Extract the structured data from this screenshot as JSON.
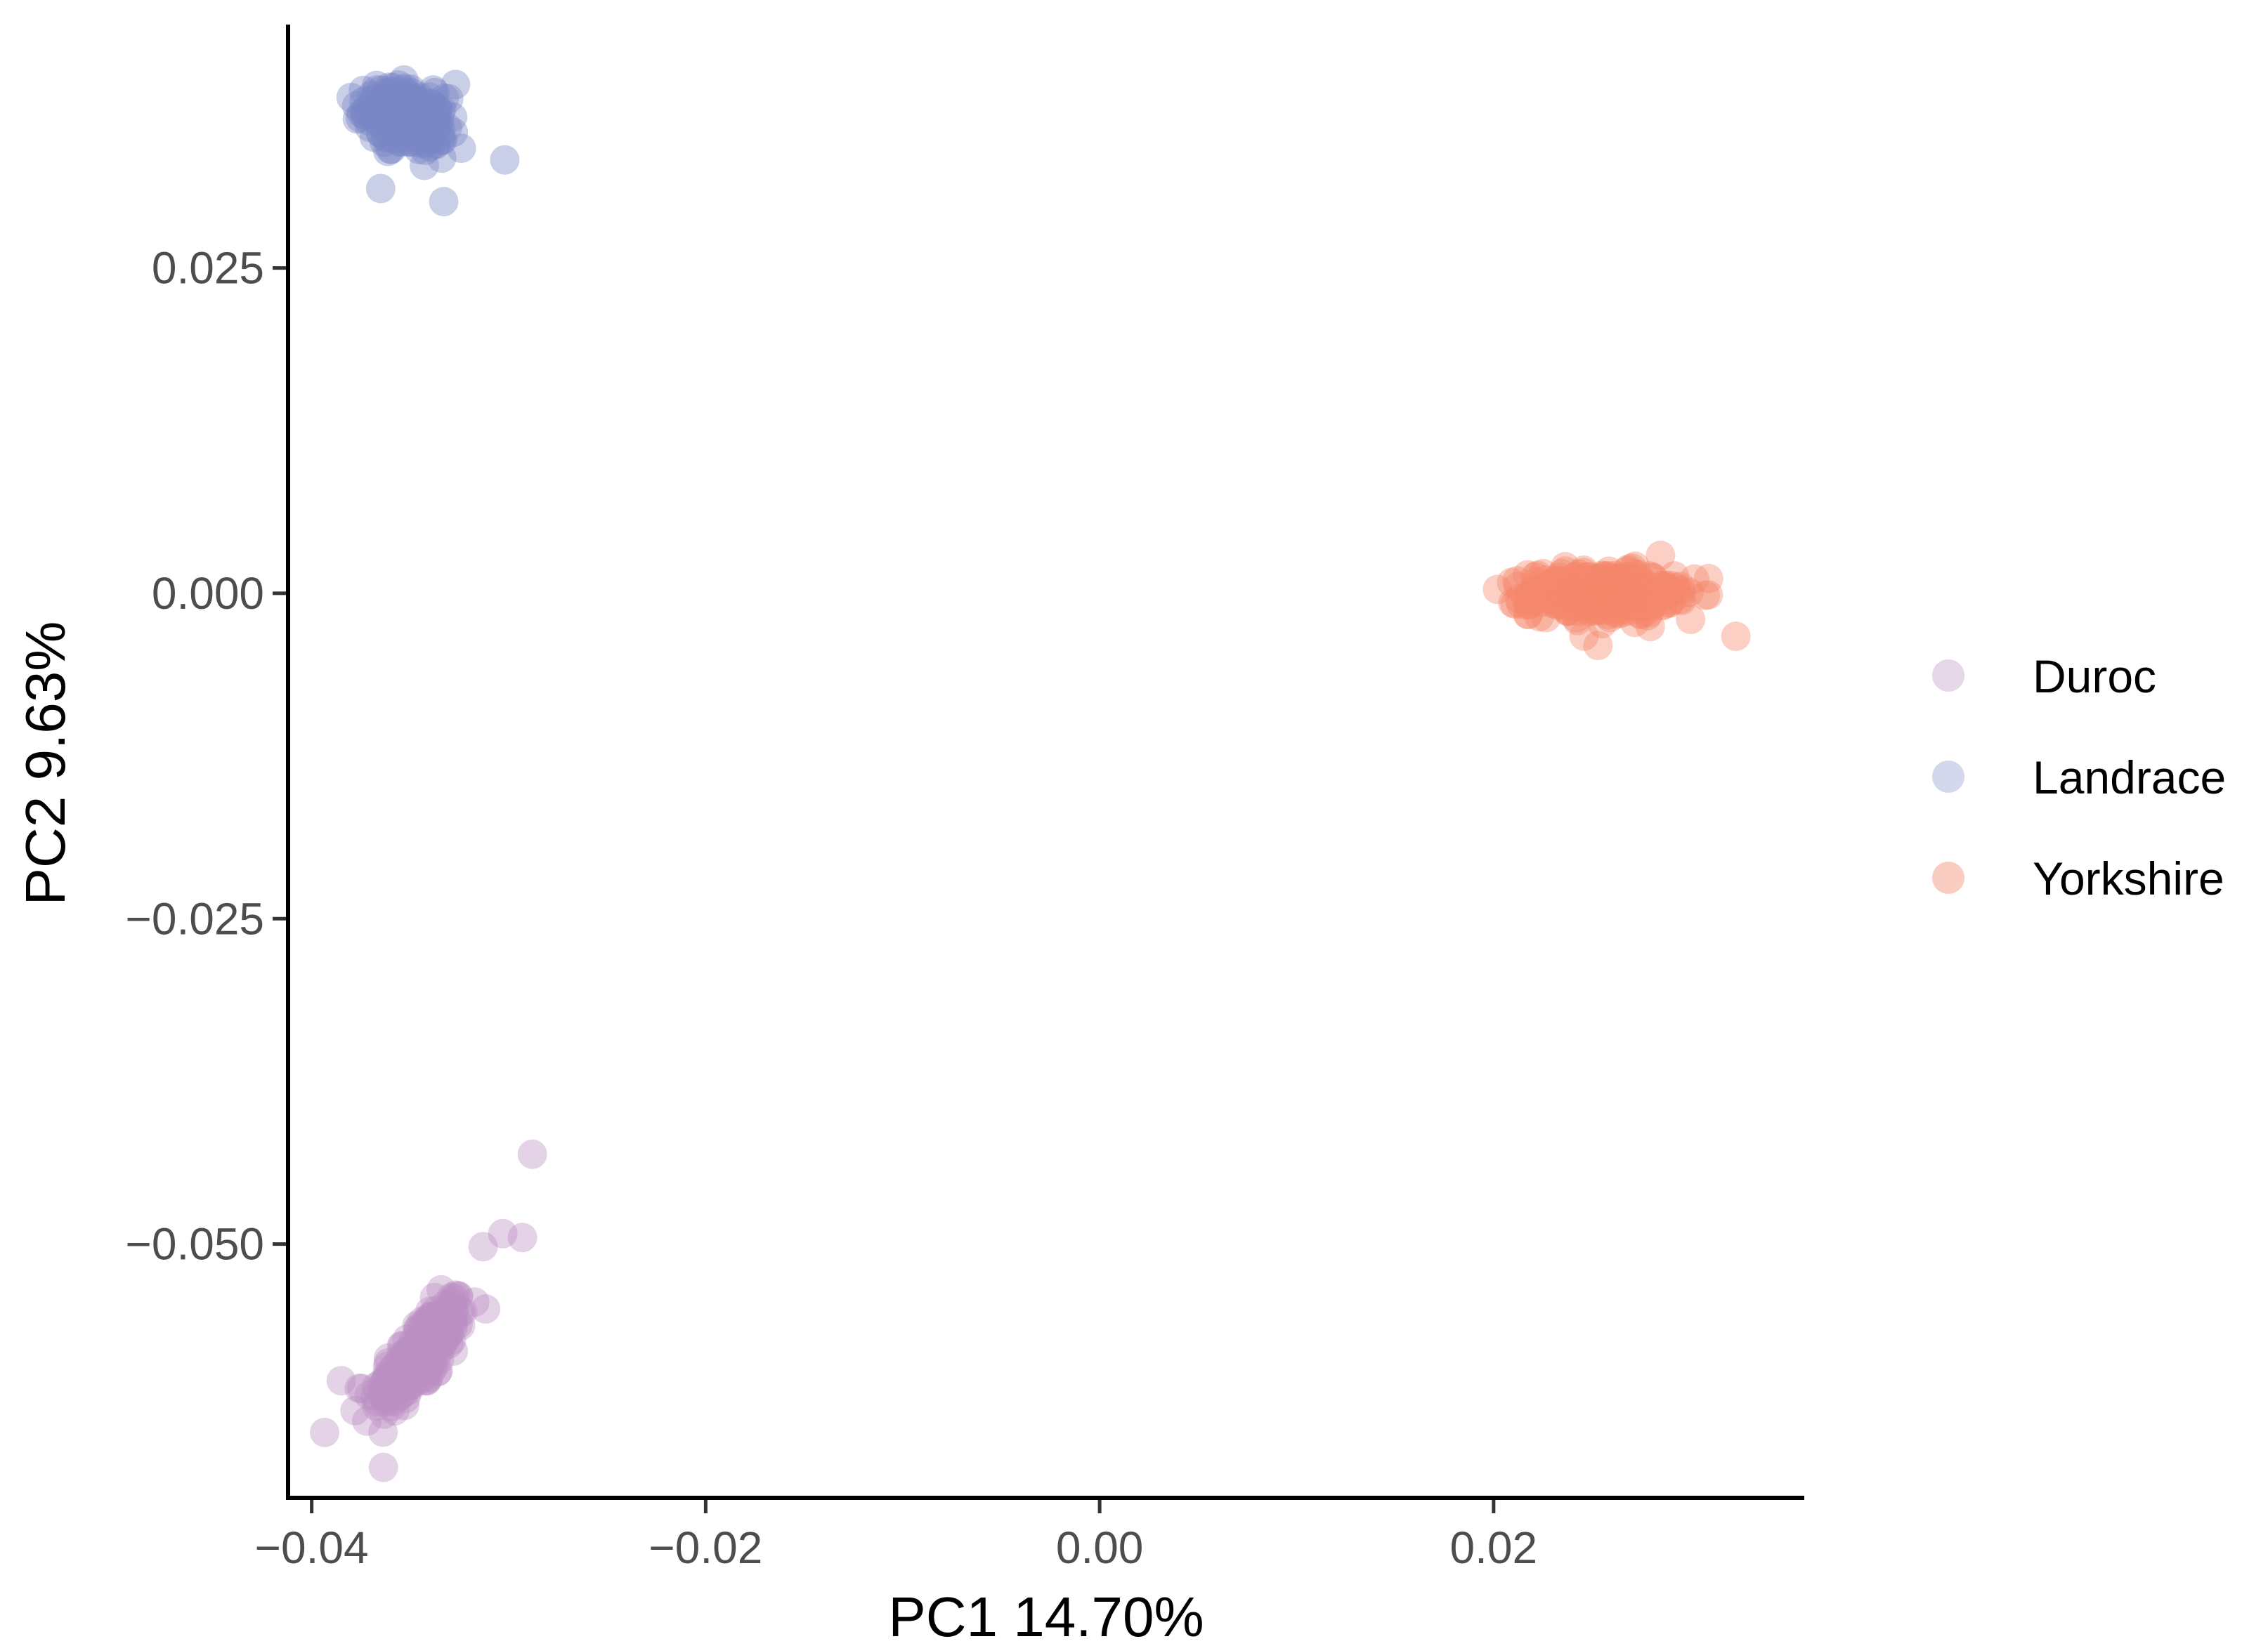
{
  "chart_data": {
    "type": "scatter",
    "title": "",
    "xlabel": "PC1 14.70%",
    "ylabel": "PC2 9.63%",
    "xlim": [
      -0.0412,
      0.0357
    ],
    "ylim": [
      -0.0695,
      0.0437
    ],
    "x_ticks": [
      -0.04,
      -0.02,
      0.0,
      0.02
    ],
    "x_tick_labels": [
      "−0.04",
      "−0.02",
      "0.00",
      "0.02"
    ],
    "y_ticks": [
      -0.05,
      -0.025,
      0.0,
      0.025
    ],
    "y_tick_labels": [
      "−0.050",
      "−0.025",
      "0.000",
      "0.025"
    ],
    "grid": false,
    "legend_position": "right",
    "point_alpha": 0.4,
    "series": [
      {
        "name": "Duroc",
        "color": "#BC8FC2",
        "legend_color": "#E5D6E8",
        "cluster": {
          "cx": -0.0345,
          "cy": -0.0585,
          "sx": 0.0012,
          "sy": 0.0022,
          "rho": 0.75,
          "n": 240
        },
        "outliers": [
          [
            -0.0288,
            -0.0431
          ],
          [
            -0.0293,
            -0.0495
          ],
          [
            -0.0303,
            -0.0492
          ],
          [
            -0.0313,
            -0.0502
          ],
          [
            -0.0378,
            -0.0628
          ],
          [
            -0.0385,
            -0.0605
          ],
          [
            -0.0372,
            -0.0636
          ]
        ]
      },
      {
        "name": "Landrace",
        "color": "#7B88C6",
        "legend_color": "#D3D8EC",
        "cluster": {
          "cx": -0.0352,
          "cy": 0.0365,
          "sx": 0.001,
          "sy": 0.0012,
          "rho": -0.3,
          "n": 260
        },
        "outliers": [
          [
            -0.0302,
            0.0333
          ],
          [
            -0.0365,
            0.0311
          ],
          [
            -0.0333,
            0.0301
          ],
          [
            -0.0327,
            0.0391
          ],
          [
            -0.038,
            0.0381
          ]
        ]
      },
      {
        "name": "Yorkshire",
        "color": "#F4866C",
        "legend_color": "#F9CDC1",
        "cluster": {
          "cx": 0.0255,
          "cy": 0.0,
          "sx": 0.0018,
          "sy": 0.00085,
          "rho": 0.0,
          "n": 420
        },
        "outliers": [
          [
            0.0323,
            -0.0033
          ],
          [
            0.0302,
            0.0011
          ],
          [
            0.03,
            -0.002
          ],
          [
            0.0202,
            0.0003
          ],
          [
            0.0253,
            -0.004
          ]
        ]
      }
    ]
  }
}
